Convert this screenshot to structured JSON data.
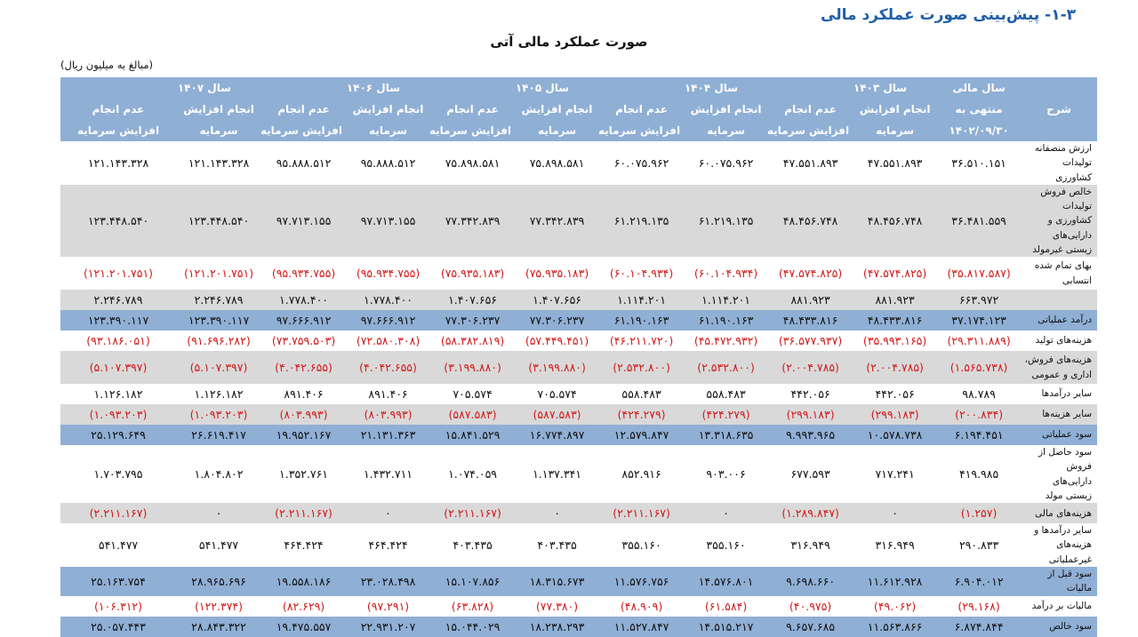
{
  "heading": "۱-۳- پیش‌بینی صورت عملکرد مالی",
  "title": "صورت عملکرد مالی آتی",
  "unit_note": "(مبالغ به میلیون ریال)",
  "header": {
    "desc": "شرح",
    "base_year": [
      "سال مالی",
      "منتهی به",
      "۱۴۰۲/۰۹/۳۰"
    ],
    "years": [
      "سال ۱۴۰۳",
      "سال ۱۴۰۴",
      "سال ۱۴۰۵",
      "سال ۱۴۰۶",
      "سال ۱۴۰۷"
    ],
    "with_increase": [
      "انجام افزایش",
      "سرمایه"
    ],
    "without_increase": [
      "عدم انجام",
      "افزایش سرمایه"
    ]
  },
  "rows": [
    {
      "label": "ارزش منصفانه تولیدات کشاورزی",
      "style": "white",
      "values": [
        "۳۶.۵۱۰.۱۵۱",
        "۴۷.۵۵۱.۸۹۳",
        "۴۷.۵۵۱.۸۹۳",
        "۶۰.۰۷۵.۹۶۲",
        "۶۰.۰۷۵.۹۶۲",
        "۷۵.۸۹۸.۵۸۱",
        "۷۵.۸۹۸.۵۸۱",
        "۹۵.۸۸۸.۵۱۲",
        "۹۵.۸۸۸.۵۱۲",
        "۱۲۱.۱۴۳.۳۲۸",
        "۱۲۱.۱۴۳.۳۲۸"
      ],
      "neg": false
    },
    {
      "label": "خالص فروش تولیدات کشاورزی و دارایی‌های زیستی غیرمولد",
      "style": "gray",
      "values": [
        "۳۶.۴۸۱.۵۵۹",
        "۴۸.۴۵۶.۷۴۸",
        "۴۸.۴۵۶.۷۴۸",
        "۶۱.۲۱۹.۱۳۵",
        "۶۱.۲۱۹.۱۳۵",
        "۷۷.۳۴۲.۸۳۹",
        "۷۷.۳۴۲.۸۳۹",
        "۹۷.۷۱۳.۱۵۵",
        "۹۷.۷۱۳.۱۵۵",
        "۱۲۳.۴۴۸.۵۴۰",
        "۱۲۳.۴۴۸.۵۴۰"
      ],
      "neg": false
    },
    {
      "label": "بهای تمام شده انتسابی",
      "style": "white",
      "values": [
        "(۳۵.۸۱۷.۵۸۷)",
        "(۴۷.۵۷۴.۸۲۵)",
        "(۴۷.۵۷۴.۸۲۵)",
        "(۶۰.۱۰۴.۹۳۴)",
        "(۶۰.۱۰۴.۹۳۴)",
        "(۷۵.۹۳۵.۱۸۳)",
        "(۷۵.۹۳۵.۱۸۳)",
        "(۹۵.۹۳۴.۷۵۵)",
        "(۹۵.۹۳۴.۷۵۵)",
        "(۱۲۱.۲۰۱.۷۵۱)",
        "(۱۲۱.۲۰۱.۷۵۱)"
      ],
      "neg": true
    },
    {
      "label": "",
      "style": "gray",
      "values": [
        "۶۶۳.۹۷۲",
        "۸۸۱.۹۲۳",
        "۸۸۱.۹۲۳",
        "۱.۱۱۴.۲۰۱",
        "۱.۱۱۴.۲۰۱",
        "۱.۴۰۷.۶۵۶",
        "۱.۴۰۷.۶۵۶",
        "۱.۷۷۸.۴۰۰",
        "۱.۷۷۸.۴۰۰",
        "۲.۲۴۶.۷۸۹",
        "۲.۲۴۶.۷۸۹"
      ],
      "neg": false
    },
    {
      "label": "درآمد عملیاتی",
      "style": "blue",
      "values": [
        "۳۷.۱۷۴.۱۲۳",
        "۴۸.۴۳۳.۸۱۶",
        "۴۸.۴۳۳.۸۱۶",
        "۶۱.۱۹۰.۱۶۳",
        "۶۱.۱۹۰.۱۶۳",
        "۷۷.۳۰۶.۲۳۷",
        "۷۷.۳۰۶.۲۳۷",
        "۹۷.۶۶۶.۹۱۲",
        "۹۷.۶۶۶.۹۱۲",
        "۱۲۳.۳۹۰.۱۱۷",
        "۱۲۳.۳۹۰.۱۱۷"
      ],
      "neg": false
    },
    {
      "label": "هزینه‌های تولید",
      "style": "white",
      "values": [
        "(۲۹.۳۱۱.۸۸۹)",
        "(۳۵.۹۹۳.۱۶۵)",
        "(۳۶.۵۷۷.۹۳۷)",
        "(۴۵.۴۷۲.۹۳۲)",
        "(۴۶.۲۱۱.۷۲۰)",
        "(۵۷.۴۴۹.۴۵۱)",
        "(۵۸.۳۸۲.۸۱۹)",
        "(۷۲.۵۸۰.۳۰۸)",
        "(۷۳.۷۵۹.۵۰۳)",
        "(۹۱.۶۹۶.۲۸۲)",
        "(۹۳.۱۸۶.۰۵۱)"
      ],
      "neg": true
    },
    {
      "label": "هزینه‌های فروش، اداری و عمومی",
      "style": "gray",
      "values": [
        "(۱.۵۶۵.۷۳۸)",
        "(۲.۰۰۴.۷۸۵)",
        "(۲.۰۰۴.۷۸۵)",
        "(۲.۵۳۲.۸۰۰)",
        "(۲.۵۳۲.۸۰۰)",
        "(۳.۱۹۹.۸۸۰)",
        "(۳.۱۹۹.۸۸۰)",
        "(۴.۰۴۲.۶۵۵)",
        "(۴.۰۴۲.۶۵۵)",
        "(۵.۱۰۷.۳۹۷)",
        "(۵.۱۰۷.۳۹۷)"
      ],
      "neg": true
    },
    {
      "label": "سایر درآمدها",
      "style": "white",
      "values": [
        "۹۸.۷۸۹",
        "۴۴۲.۰۵۶",
        "۴۴۲.۰۵۶",
        "۵۵۸.۴۸۳",
        "۵۵۸.۴۸۳",
        "۷۰۵.۵۷۴",
        "۷۰۵.۵۷۴",
        "۸۹۱.۴۰۶",
        "۸۹۱.۴۰۶",
        "۱.۱۲۶.۱۸۲",
        "۱.۱۲۶.۱۸۲"
      ],
      "neg": false
    },
    {
      "label": "سایر هزینه‌ها",
      "style": "gray",
      "values": [
        "(۲۰۰.۸۳۴)",
        "(۲۹۹.۱۸۳)",
        "(۲۹۹.۱۸۳)",
        "(۴۲۴.۲۷۹)",
        "(۴۲۴.۲۷۹)",
        "(۵۸۷.۵۸۳)",
        "(۵۸۷.۵۸۳)",
        "(۸۰۳.۹۹۳)",
        "(۸۰۳.۹۹۳)",
        "(۱.۰۹۳.۲۰۳)",
        "(۱.۰۹۳.۲۰۳)"
      ],
      "neg": true
    },
    {
      "label": "سود عملیاتی",
      "style": "blue",
      "values": [
        "۶.۱۹۴.۴۵۱",
        "۱۰.۵۷۸.۷۳۸",
        "۹.۹۹۳.۹۶۵",
        "۱۳.۳۱۸.۶۳۵",
        "۱۲.۵۷۹.۸۴۷",
        "۱۶.۷۷۴.۸۹۷",
        "۱۵.۸۴۱.۵۲۹",
        "۲۱.۱۳۱.۳۶۳",
        "۱۹.۹۵۲.۱۶۷",
        "۲۶.۶۱۹.۴۱۷",
        "۲۵.۱۲۹.۶۴۹"
      ],
      "neg": false
    },
    {
      "label": "سود حاصل از فروش دارایی‌های زیستی مولد",
      "style": "white",
      "values": [
        "۴۱۹.۹۸۵",
        "۷۱۷.۲۴۱",
        "۶۷۷.۵۹۳",
        "۹۰۳.۰۰۶",
        "۸۵۲.۹۱۶",
        "۱.۱۳۷.۳۴۱",
        "۱.۰۷۴.۰۵۹",
        "۱.۴۳۲.۷۱۱",
        "۱.۳۵۲.۷۶۱",
        "۱.۸۰۴.۸۰۲",
        "۱.۷۰۳.۷۹۵"
      ],
      "neg": false
    },
    {
      "label": "هزینه‌های مالی",
      "style": "gray",
      "values": [
        "(۱.۲۵۷)",
        "۰",
        "(۱.۲۸۹.۸۴۷)",
        "۰",
        "(۲.۲۱۱.۱۶۷)",
        "۰",
        "(۲.۲۱۱.۱۶۷)",
        "۰",
        "(۲.۲۱۱.۱۶۷)",
        "۰",
        "(۲.۲۱۱.۱۶۷)"
      ],
      "neg": true
    },
    {
      "label": "سایر درآمدها و هزینه‌های غیرعملیاتی",
      "style": "white",
      "values": [
        "۲۹۰.۸۳۳",
        "۳۱۶.۹۴۹",
        "۳۱۶.۹۴۹",
        "۳۵۵.۱۶۰",
        "۳۵۵.۱۶۰",
        "۴۰۳.۴۳۵",
        "۴۰۳.۴۳۵",
        "۴۶۴.۴۲۴",
        "۴۶۴.۴۲۴",
        "۵۴۱.۴۷۷",
        "۵۴۱.۴۷۷"
      ],
      "neg": false
    },
    {
      "label": "سود قبل از مالیات",
      "style": "blue",
      "values": [
        "۶.۹۰۴.۰۱۲",
        "۱۱.۶۱۲.۹۲۸",
        "۹.۶۹۸.۶۶۰",
        "۱۴.۵۷۶.۸۰۱",
        "۱۱.۵۷۶.۷۵۶",
        "۱۸.۳۱۵.۶۷۳",
        "۱۵.۱۰۷.۸۵۶",
        "۲۳.۰۲۸.۴۹۸",
        "۱۹.۵۵۸.۱۸۶",
        "۲۸.۹۶۵.۶۹۶",
        "۲۵.۱۶۳.۷۵۴"
      ],
      "neg": false
    },
    {
      "label": "مالیات بر درآمد",
      "style": "white",
      "values": [
        "(۲۹.۱۶۸)",
        "(۴۹.۰۶۲)",
        "(۴۰.۹۷۵)",
        "(۶۱.۵۸۴)",
        "(۴۸.۹۰۹)",
        "(۷۷.۳۸۰)",
        "(۶۳.۸۲۸)",
        "(۹۷.۲۹۱)",
        "(۸۲.۶۲۹)",
        "(۱۲۲.۳۷۴)",
        "(۱۰۶.۳۱۲)"
      ],
      "neg": true
    },
    {
      "label": "سود خالص",
      "style": "blue",
      "values": [
        "۶.۸۷۴.۸۴۴",
        "۱۱.۵۶۳.۸۶۶",
        "۹.۶۵۷.۶۸۵",
        "۱۴.۵۱۵.۲۱۷",
        "۱۱.۵۲۷.۸۴۷",
        "۱۸.۲۳۸.۲۹۳",
        "۱۵.۰۴۴.۰۲۹",
        "۲۲.۹۳۱.۲۰۷",
        "۱۹.۴۷۵.۵۵۷",
        "۲۸.۸۴۳.۳۲۲",
        "۲۵.۰۵۷.۴۴۳"
      ],
      "neg": false
    }
  ]
}
